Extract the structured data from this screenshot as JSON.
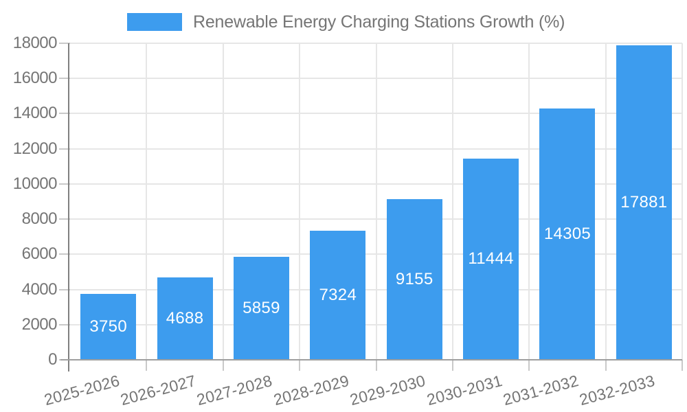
{
  "chart_data": {
    "type": "bar",
    "title": "Renewable Energy Charging Stations Growth (%)",
    "legend_position": "top",
    "categories": [
      "2025-2026",
      "2026-2027",
      "2027-2028",
      "2028-2029",
      "2029-2030",
      "2030-2031",
      "2031-2032",
      "2032-2033"
    ],
    "series": [
      {
        "name": "Renewable Energy Charging Stations Growth (%)",
        "values": [
          3750,
          4688,
          5859,
          7324,
          9155,
          11444,
          14305,
          17881
        ]
      }
    ],
    "values": [
      3750,
      4688,
      5859,
      7324,
      9155,
      11444,
      14305,
      17881
    ],
    "bar_value_labels_visible": true,
    "xlabel": "",
    "ylabel": "",
    "ylim": [
      0,
      18000
    ],
    "yticks": [
      0,
      2000,
      4000,
      6000,
      8000,
      10000,
      12000,
      14000,
      16000,
      18000
    ],
    "grid": true,
    "colors": {
      "bar": "#3D9CEE",
      "bar_label_text": "#FFFFFF",
      "axis_text": "#757575",
      "legend_text": "#757575",
      "grid_line": "#E6E6E6",
      "axis_line": "#808080",
      "x_axis_line": "#9E9E9E",
      "tick_line": "#C9C9C9",
      "background": "#FFFFFF"
    }
  }
}
